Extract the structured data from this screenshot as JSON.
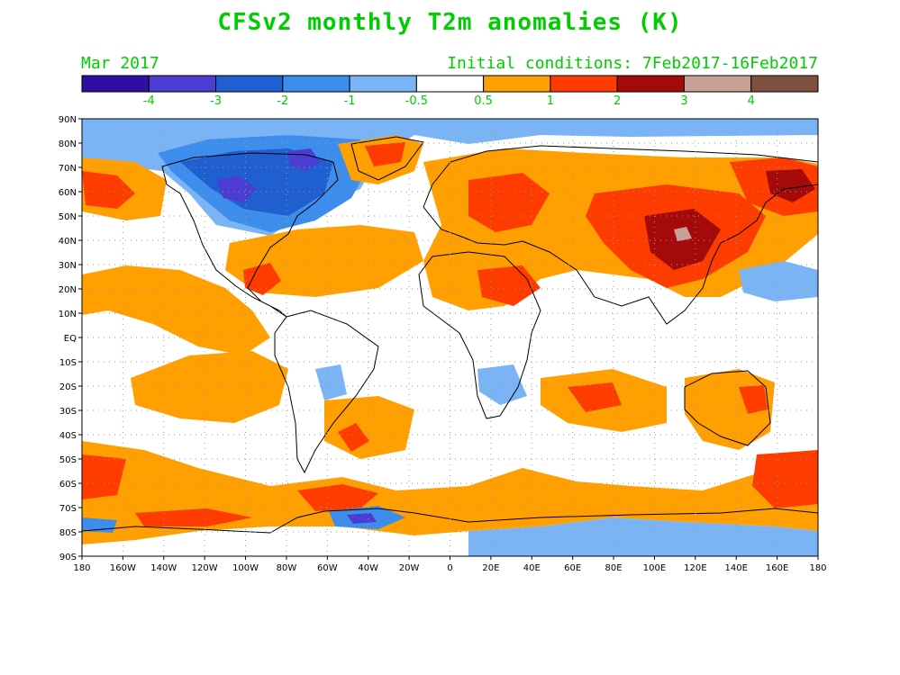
{
  "title": "CFSv2 monthly T2m anomalies (K)",
  "valid_month": "Mar 2017",
  "initial_conditions": "Initial conditions: 7Feb2017-16Feb2017",
  "colors": {
    "text": "#00cc00",
    "land_outline": "#000000",
    "grid": "#9a9a9a"
  },
  "colorbar": {
    "bins": [
      {
        "color": "#2e0fa0"
      },
      {
        "color": "#4b3cd2"
      },
      {
        "color": "#1f5fd0"
      },
      {
        "color": "#3d8eec"
      },
      {
        "color": "#7ab4f5"
      },
      {
        "color": "#ffffff"
      },
      {
        "color": "#ffa000"
      },
      {
        "color": "#ff3c00"
      },
      {
        "color": "#a50a0a"
      },
      {
        "color": "#c8a096"
      },
      {
        "color": "#7d5040"
      }
    ],
    "labels": [
      "-4",
      "-3",
      "-2",
      "-1",
      "-0.5",
      "0.5",
      "1",
      "2",
      "3",
      "4"
    ]
  },
  "lat_labels": [
    "90N",
    "80N",
    "70N",
    "60N",
    "50N",
    "40N",
    "30N",
    "20N",
    "10N",
    "EQ",
    "10S",
    "20S",
    "30S",
    "40S",
    "50S",
    "60S",
    "70S",
    "80S",
    "90S"
  ],
  "lon_labels": [
    "180",
    "160W",
    "140W",
    "120W",
    "100W",
    "80W",
    "60W",
    "40W",
    "20W",
    "0",
    "20E",
    "40E",
    "60E",
    "80E",
    "100E",
    "120E",
    "140E",
    "160E",
    "180"
  ],
  "anomaly_regions": [
    {
      "name": "arctic-cold-band",
      "color": "#7ab4f5"
    },
    {
      "name": "north-america-cold",
      "color": "#3d8eec"
    },
    {
      "name": "canada-core-cold",
      "color": "#1f5fd0"
    },
    {
      "name": "hudson-bay-cold",
      "color": "#4b3cd2"
    },
    {
      "name": "eurasia-warm",
      "color": "#ffa000"
    },
    {
      "name": "siberia-china-warm",
      "color": "#ff3c00"
    },
    {
      "name": "mongolia-core-warm",
      "color": "#a50a0a"
    },
    {
      "name": "southern-ocean-warm",
      "color": "#ffa000"
    },
    {
      "name": "antarctic-cold",
      "color": "#7ab4f5"
    }
  ]
}
